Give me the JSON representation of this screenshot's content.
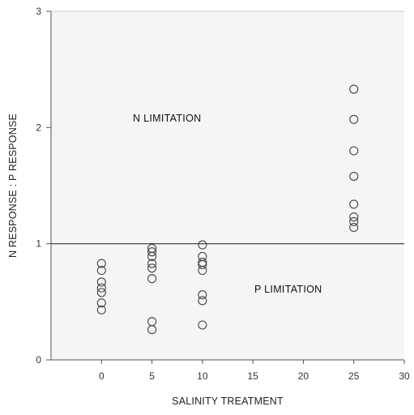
{
  "chart_data": {
    "type": "scatter",
    "title": "",
    "xlabel": "SALINITY TREATMENT",
    "ylabel": "N RESPONSE : P RESPONSE",
    "xlim": [
      -5,
      30
    ],
    "ylim": [
      0,
      3
    ],
    "x_ticks": [
      "0",
      "5",
      "10",
      "15",
      "20",
      "25",
      "30"
    ],
    "y_ticks": [
      "0",
      "1",
      "2",
      "3"
    ],
    "x_tick_values": [
      0,
      5,
      10,
      15,
      20,
      25,
      30
    ],
    "y_tick_values": [
      0,
      1,
      2,
      3
    ],
    "reference_line_y": 1.0,
    "grid": false,
    "marker": "open-circle",
    "annotations": [
      {
        "text": "N LIMITATION",
        "x": 6.5,
        "y": 2.05
      },
      {
        "text": "P LIMITATION",
        "x": 18.5,
        "y": 0.58
      }
    ],
    "points": [
      {
        "x": 0,
        "y": 0.83
      },
      {
        "x": 0,
        "y": 0.77
      },
      {
        "x": 0,
        "y": 0.67
      },
      {
        "x": 0,
        "y": 0.62
      },
      {
        "x": 0,
        "y": 0.58
      },
      {
        "x": 0,
        "y": 0.49
      },
      {
        "x": 0,
        "y": 0.43
      },
      {
        "x": 5,
        "y": 0.96
      },
      {
        "x": 5,
        "y": 0.93
      },
      {
        "x": 5,
        "y": 0.89
      },
      {
        "x": 5,
        "y": 0.83
      },
      {
        "x": 5,
        "y": 0.79
      },
      {
        "x": 5,
        "y": 0.7
      },
      {
        "x": 5,
        "y": 0.33
      },
      {
        "x": 5,
        "y": 0.26
      },
      {
        "x": 10,
        "y": 0.99
      },
      {
        "x": 10,
        "y": 0.89
      },
      {
        "x": 10,
        "y": 0.84
      },
      {
        "x": 10,
        "y": 0.82
      },
      {
        "x": 10,
        "y": 0.77
      },
      {
        "x": 10,
        "y": 0.56
      },
      {
        "x": 10,
        "y": 0.51
      },
      {
        "x": 10,
        "y": 0.3
      },
      {
        "x": 25,
        "y": 2.33
      },
      {
        "x": 25,
        "y": 2.07
      },
      {
        "x": 25,
        "y": 1.8
      },
      {
        "x": 25,
        "y": 1.58
      },
      {
        "x": 25,
        "y": 1.34
      },
      {
        "x": 25,
        "y": 1.23
      },
      {
        "x": 25,
        "y": 1.19
      },
      {
        "x": 25,
        "y": 1.14
      }
    ]
  }
}
